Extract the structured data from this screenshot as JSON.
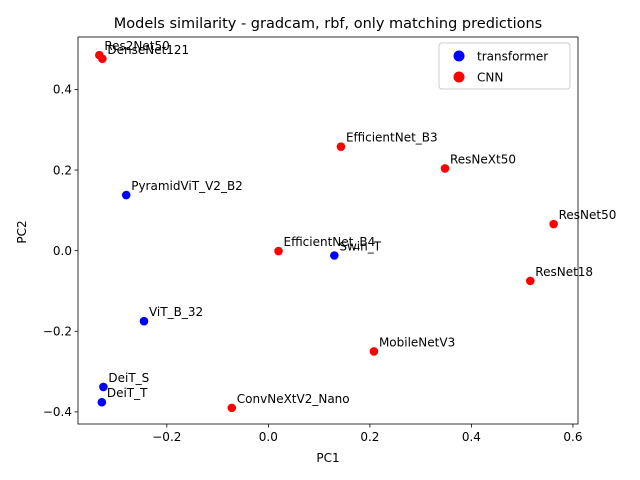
{
  "chart_data": {
    "type": "scatter",
    "title": "Models similarity - gradcam, rbf, only matching predictions",
    "xlabel": "PC1",
    "ylabel": "PC2",
    "xlim": [
      -0.375,
      0.61
    ],
    "ylim": [
      -0.43,
      0.53
    ],
    "xticks": [
      -0.2,
      0.0,
      0.2,
      0.4,
      0.6
    ],
    "xtick_labels": [
      "−0.2",
      "0.0",
      "0.2",
      "0.4",
      "0.6"
    ],
    "yticks": [
      -0.4,
      -0.2,
      0.0,
      0.2,
      0.4
    ],
    "ytick_labels": [
      "−0.4",
      "−0.2",
      "0.0",
      "0.2",
      "0.4"
    ],
    "grid": false,
    "legend_placement": "top-right",
    "series": [
      {
        "name": "transformer",
        "color": "#0000ff",
        "points": [
          {
            "label": "PyramidViT_V2_B2",
            "x": -0.28,
            "y": 0.138
          },
          {
            "label": "Swin_T",
            "x": 0.13,
            "y": -0.012
          },
          {
            "label": "ViT_B_32",
            "x": -0.245,
            "y": -0.175
          },
          {
            "label": "DeiT_S",
            "x": -0.325,
            "y": -0.338
          },
          {
            "label": "DeiT_T",
            "x": -0.328,
            "y": -0.376
          }
        ]
      },
      {
        "name": "CNN",
        "color": "#ff0000",
        "points": [
          {
            "label": "Res2Net50",
            "x": -0.333,
            "y": 0.485
          },
          {
            "label": "DenseNet121",
            "x": -0.327,
            "y": 0.476
          },
          {
            "label": "EfficientNet_B3",
            "x": 0.143,
            "y": 0.258
          },
          {
            "label": "ResNeXt50",
            "x": 0.348,
            "y": 0.204
          },
          {
            "label": "ResNet50",
            "x": 0.562,
            "y": 0.066
          },
          {
            "label": "EfficientNet_B4",
            "x": 0.02,
            "y": -0.001
          },
          {
            "label": "ResNet18",
            "x": 0.516,
            "y": -0.075
          },
          {
            "label": "MobileNetV3",
            "x": 0.208,
            "y": -0.25
          },
          {
            "label": "ConvNeXtV2_Nano",
            "x": -0.072,
            "y": -0.39
          }
        ]
      }
    ]
  }
}
